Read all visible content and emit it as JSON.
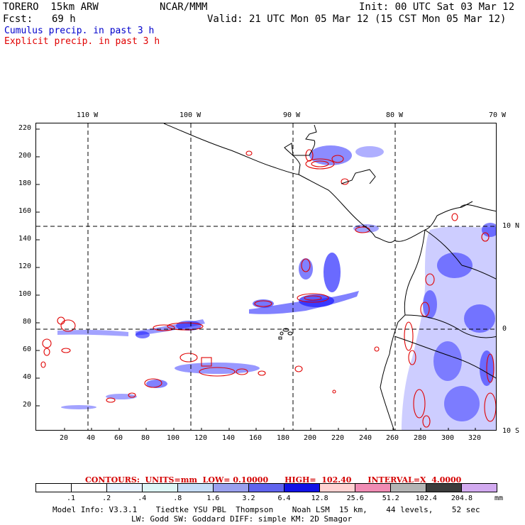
{
  "header": {
    "model": "TORERO  15km ARW",
    "org": "NCAR/MMM",
    "init": "Init: 00 UTC Sat 03 Mar 12",
    "fcst_label": "Fcst:",
    "fcst_value": "69 h",
    "valid": "Valid: 21 UTC Mon 05 Mar 12 (15 CST Mon 05 Mar 12)"
  },
  "legend": {
    "cumulus": "Cumulus precip. in past 3 h",
    "explicit": "Explicit precip. in past 3 h"
  },
  "map": {
    "lon_labels": [
      "110 W",
      "100 W",
      "90 W",
      "80 W",
      "70 W"
    ],
    "lat_labels": [
      "10 N",
      "0",
      "10 S"
    ],
    "y_ticks": [
      "220",
      "200",
      "180",
      "160",
      "140",
      "120",
      "100",
      "80",
      "60",
      "40",
      "20"
    ],
    "x_ticks": [
      "20",
      "40",
      "60",
      "80",
      "100",
      "120",
      "140",
      "160",
      "180",
      "200",
      "220",
      "240",
      "260",
      "280",
      "300",
      "320"
    ],
    "coast_color": "#000000",
    "cumulus_color": "#1a1aff",
    "explicit_color": "#e00000"
  },
  "contours": {
    "text": "CONTOURS:  UNITS=mm  LOW= 0.10000      HIGH=  102.40      INTERVAL=X  4.0000"
  },
  "colorbar": {
    "colors": [
      "#ffffff",
      "#ffffff",
      "#e8f2ff",
      "#ddf6f6",
      "#c6dcf6",
      "#9aa0ee",
      "#6064ee",
      "#1212e6",
      "#ffd2d2",
      "#f08cb4",
      "#b4b4b4",
      "#3c3c3c",
      "#d2aaf0"
    ],
    "labels": [
      ".1",
      ".2",
      ".4",
      ".8",
      "1.6",
      "3.2",
      "6.4",
      "12.8",
      "25.6",
      "51.2",
      "102.4",
      "204.8"
    ],
    "unit": "mm"
  },
  "footer": {
    "line1": "Model Info: V3.3.1    Tiedtke YSU PBL  Thompson    Noah LSM  15 km,    44 levels,    52 sec",
    "line2": "LW: Godd SW: Goddard DIFF: simple KM: 2D Smagor"
  }
}
